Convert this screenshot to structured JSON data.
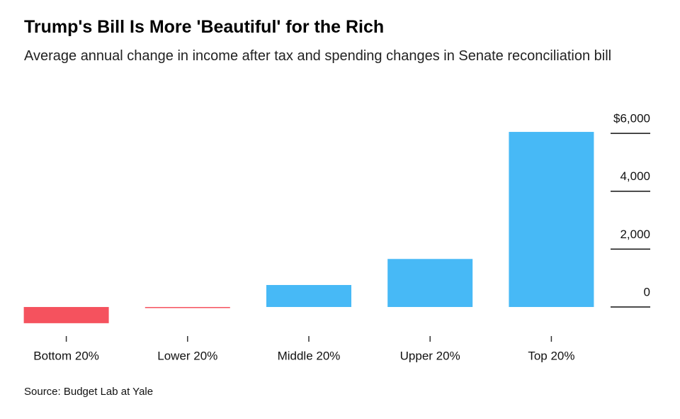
{
  "chart_data": {
    "type": "bar",
    "title": "Trump's Bill Is More 'Beautiful' for the Rich",
    "subtitle": "Average annual change in income after tax and spending changes in Senate reconciliation bill",
    "source": "Source: Budget Lab at Yale",
    "categories": [
      "Bottom 20%",
      "Lower 20%",
      "Middle 20%",
      "Upper 20%",
      "Top 20%"
    ],
    "values": [
      -560,
      -30,
      760,
      1660,
      6050
    ],
    "colors": {
      "negative": "#f5525e",
      "positive": "#47b9f6"
    },
    "ylim": [
      -700,
      6100
    ],
    "yticks": [
      {
        "value": 0,
        "label": "0"
      },
      {
        "value": 2000,
        "label": "2,000"
      },
      {
        "value": 4000,
        "label": "4,000"
      },
      {
        "value": 6000,
        "label": "$6,000"
      }
    ],
    "grid": false
  }
}
